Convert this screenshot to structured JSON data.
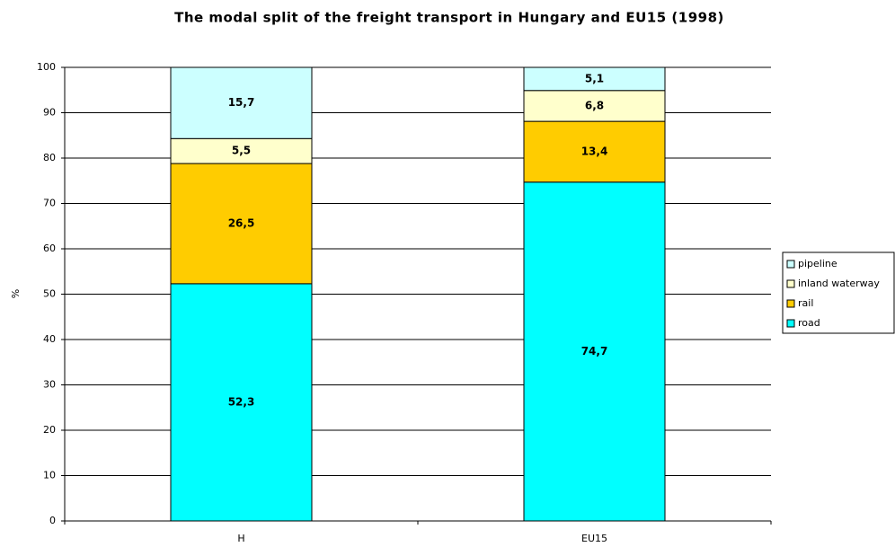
{
  "chart_data": {
    "type": "stacked_bar",
    "title": "The modal split of the freight transport in Hungary and EU15 (1998)",
    "y_label": "%",
    "categories": [
      "H",
      "EU15"
    ],
    "series": [
      {
        "name": "road",
        "color": "#00ffff",
        "values": [
          52.3,
          74.7
        ],
        "value_labels": [
          "52,3",
          "74,7"
        ]
      },
      {
        "name": "rail",
        "color": "#ffcc00",
        "values": [
          26.5,
          13.4
        ],
        "value_labels": [
          "26,5",
          "13,4"
        ]
      },
      {
        "name": "inland waterway",
        "color": "#ffffcc",
        "values": [
          5.5,
          6.8
        ],
        "value_labels": [
          "5,5",
          "6,8"
        ]
      },
      {
        "name": "pipeline",
        "color": "#ccffff",
        "values": [
          15.7,
          5.1
        ],
        "value_labels": [
          "15,7",
          "5,1"
        ]
      }
    ],
    "ylim": [
      0,
      100
    ],
    "yticks": [
      0,
      10,
      20,
      30,
      40,
      50,
      60,
      70,
      80,
      90,
      100
    ],
    "grid": true,
    "legend": "right"
  }
}
